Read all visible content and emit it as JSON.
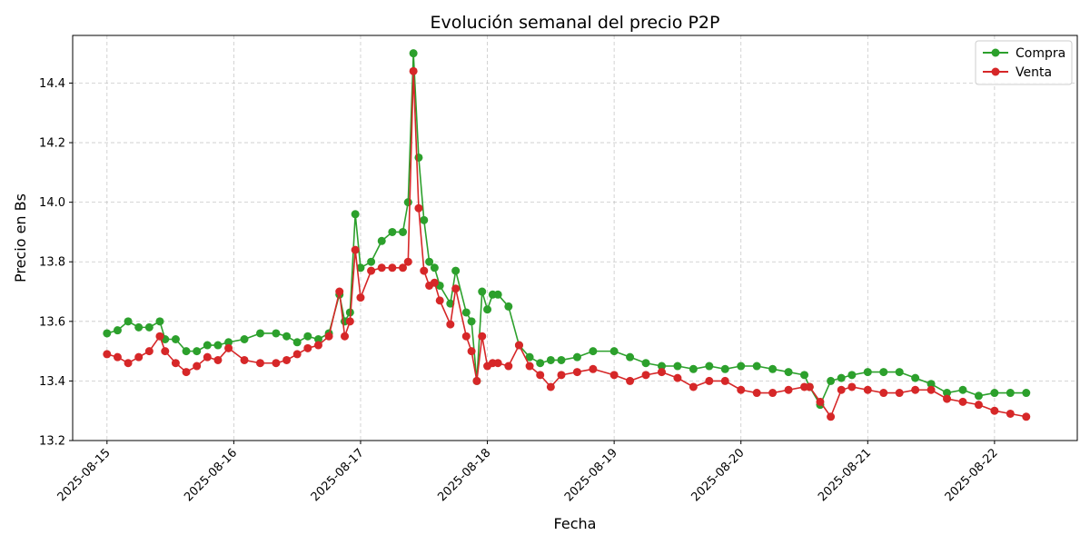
{
  "chart_data": {
    "type": "line",
    "title": "Evolución semanal del precio P2P",
    "xlabel": "Fecha",
    "ylabel": "Precio en Bs",
    "x_start": "2025-08-15",
    "xlim": [
      "2025-08-14T17:30",
      "2025-08-22T15:40"
    ],
    "ylim": [
      13.2,
      14.56
    ],
    "x_ticks": [
      "2025-08-15",
      "2025-08-16",
      "2025-08-17",
      "2025-08-18",
      "2025-08-19",
      "2025-08-20",
      "2025-08-21",
      "2025-08-22"
    ],
    "y_ticks": [
      13.2,
      13.4,
      13.6,
      13.8,
      14.0,
      14.2,
      14.4
    ],
    "y_tick_labels": [
      "13.2",
      "13.4",
      "13.6",
      "13.8",
      "14.0",
      "14.2",
      "14.4"
    ],
    "grid": true,
    "legend_position": "top-right",
    "series": [
      {
        "name": "Compra",
        "color": "#2ca02c",
        "x": [
          "2025-08-15T00:00",
          "2025-08-15T02:00",
          "2025-08-15T04:00",
          "2025-08-15T06:00",
          "2025-08-15T08:00",
          "2025-08-15T10:00",
          "2025-08-15T11:00",
          "2025-08-15T13:00",
          "2025-08-15T15:00",
          "2025-08-15T17:00",
          "2025-08-15T19:00",
          "2025-08-15T21:00",
          "2025-08-15T23:00",
          "2025-08-16T02:00",
          "2025-08-16T05:00",
          "2025-08-16T08:00",
          "2025-08-16T10:00",
          "2025-08-16T12:00",
          "2025-08-16T14:00",
          "2025-08-16T16:00",
          "2025-08-16T18:00",
          "2025-08-16T20:00",
          "2025-08-16T21:00",
          "2025-08-16T22:00",
          "2025-08-16T23:00",
          "2025-08-17T00:00",
          "2025-08-17T02:00",
          "2025-08-17T04:00",
          "2025-08-17T06:00",
          "2025-08-17T08:00",
          "2025-08-17T09:00",
          "2025-08-17T10:00",
          "2025-08-17T11:00",
          "2025-08-17T12:00",
          "2025-08-17T13:00",
          "2025-08-17T14:00",
          "2025-08-17T15:00",
          "2025-08-17T17:00",
          "2025-08-17T18:00",
          "2025-08-17T20:00",
          "2025-08-17T21:00",
          "2025-08-17T22:00",
          "2025-08-17T23:00",
          "2025-08-18T00:00",
          "2025-08-18T01:00",
          "2025-08-18T02:00",
          "2025-08-18T04:00",
          "2025-08-18T06:00",
          "2025-08-18T08:00",
          "2025-08-18T10:00",
          "2025-08-18T12:00",
          "2025-08-18T14:00",
          "2025-08-18T17:00",
          "2025-08-18T20:00",
          "2025-08-19T00:00",
          "2025-08-19T03:00",
          "2025-08-19T06:00",
          "2025-08-19T09:00",
          "2025-08-19T12:00",
          "2025-08-19T15:00",
          "2025-08-19T18:00",
          "2025-08-19T21:00",
          "2025-08-20T00:00",
          "2025-08-20T03:00",
          "2025-08-20T06:00",
          "2025-08-20T09:00",
          "2025-08-20T12:00",
          "2025-08-20T13:00",
          "2025-08-20T15:00",
          "2025-08-20T17:00",
          "2025-08-20T19:00",
          "2025-08-20T21:00",
          "2025-08-21T00:00",
          "2025-08-21T03:00",
          "2025-08-21T06:00",
          "2025-08-21T09:00",
          "2025-08-21T12:00",
          "2025-08-21T15:00",
          "2025-08-21T18:00",
          "2025-08-21T21:00",
          "2025-08-22T00:00",
          "2025-08-22T03:00",
          "2025-08-22T06:00"
        ],
        "values": [
          13.56,
          13.57,
          13.6,
          13.58,
          13.58,
          13.6,
          13.54,
          13.54,
          13.5,
          13.5,
          13.52,
          13.52,
          13.53,
          13.54,
          13.56,
          13.56,
          13.55,
          13.53,
          13.55,
          13.54,
          13.56,
          13.69,
          13.6,
          13.63,
          13.96,
          13.78,
          13.8,
          13.87,
          13.9,
          13.9,
          14.0,
          14.5,
          14.15,
          13.94,
          13.8,
          13.78,
          13.72,
          13.66,
          13.77,
          13.63,
          13.6,
          13.4,
          13.7,
          13.64,
          13.69,
          13.69,
          13.65,
          13.52,
          13.48,
          13.46,
          13.47,
          13.47,
          13.48,
          13.5,
          13.5,
          13.48,
          13.46,
          13.45,
          13.45,
          13.44,
          13.45,
          13.44,
          13.45,
          13.45,
          13.44,
          13.43,
          13.42,
          13.38,
          13.32,
          13.4,
          13.41,
          13.42,
          13.43,
          13.43,
          13.43,
          13.41,
          13.39,
          13.36,
          13.37,
          13.35,
          13.36,
          13.36,
          13.36
        ]
      },
      {
        "name": "Venta",
        "color": "#d62728",
        "x": [
          "2025-08-15T00:00",
          "2025-08-15T02:00",
          "2025-08-15T04:00",
          "2025-08-15T06:00",
          "2025-08-15T08:00",
          "2025-08-15T10:00",
          "2025-08-15T11:00",
          "2025-08-15T13:00",
          "2025-08-15T15:00",
          "2025-08-15T17:00",
          "2025-08-15T19:00",
          "2025-08-15T21:00",
          "2025-08-15T23:00",
          "2025-08-16T02:00",
          "2025-08-16T05:00",
          "2025-08-16T08:00",
          "2025-08-16T10:00",
          "2025-08-16T12:00",
          "2025-08-16T14:00",
          "2025-08-16T16:00",
          "2025-08-16T18:00",
          "2025-08-16T20:00",
          "2025-08-16T21:00",
          "2025-08-16T22:00",
          "2025-08-16T23:00",
          "2025-08-17T00:00",
          "2025-08-17T02:00",
          "2025-08-17T04:00",
          "2025-08-17T06:00",
          "2025-08-17T08:00",
          "2025-08-17T09:00",
          "2025-08-17T10:00",
          "2025-08-17T11:00",
          "2025-08-17T12:00",
          "2025-08-17T13:00",
          "2025-08-17T14:00",
          "2025-08-17T15:00",
          "2025-08-17T17:00",
          "2025-08-17T18:00",
          "2025-08-17T20:00",
          "2025-08-17T21:00",
          "2025-08-17T22:00",
          "2025-08-17T23:00",
          "2025-08-18T00:00",
          "2025-08-18T01:00",
          "2025-08-18T02:00",
          "2025-08-18T04:00",
          "2025-08-18T06:00",
          "2025-08-18T08:00",
          "2025-08-18T10:00",
          "2025-08-18T12:00",
          "2025-08-18T14:00",
          "2025-08-18T17:00",
          "2025-08-18T20:00",
          "2025-08-19T00:00",
          "2025-08-19T03:00",
          "2025-08-19T06:00",
          "2025-08-19T09:00",
          "2025-08-19T12:00",
          "2025-08-19T15:00",
          "2025-08-19T18:00",
          "2025-08-19T21:00",
          "2025-08-20T00:00",
          "2025-08-20T03:00",
          "2025-08-20T06:00",
          "2025-08-20T09:00",
          "2025-08-20T12:00",
          "2025-08-20T13:00",
          "2025-08-20T15:00",
          "2025-08-20T17:00",
          "2025-08-20T19:00",
          "2025-08-20T21:00",
          "2025-08-21T00:00",
          "2025-08-21T03:00",
          "2025-08-21T06:00",
          "2025-08-21T09:00",
          "2025-08-21T12:00",
          "2025-08-21T15:00",
          "2025-08-21T18:00",
          "2025-08-21T21:00",
          "2025-08-22T00:00",
          "2025-08-22T03:00",
          "2025-08-22T06:00"
        ],
        "values": [
          13.49,
          13.48,
          13.46,
          13.48,
          13.5,
          13.55,
          13.5,
          13.46,
          13.43,
          13.45,
          13.48,
          13.47,
          13.51,
          13.47,
          13.46,
          13.46,
          13.47,
          13.49,
          13.51,
          13.52,
          13.55,
          13.7,
          13.55,
          13.6,
          13.84,
          13.68,
          13.77,
          13.78,
          13.78,
          13.78,
          13.8,
          14.44,
          13.98,
          13.77,
          13.72,
          13.73,
          13.67,
          13.59,
          13.71,
          13.55,
          13.5,
          13.4,
          13.55,
          13.45,
          13.46,
          13.46,
          13.45,
          13.52,
          13.45,
          13.42,
          13.38,
          13.42,
          13.43,
          13.44,
          13.42,
          13.4,
          13.42,
          13.43,
          13.41,
          13.38,
          13.4,
          13.4,
          13.37,
          13.36,
          13.36,
          13.37,
          13.38,
          13.38,
          13.33,
          13.28,
          13.37,
          13.38,
          13.37,
          13.36,
          13.36,
          13.37,
          13.37,
          13.34,
          13.33,
          13.32,
          13.3,
          13.29,
          13.28
        ]
      }
    ]
  }
}
